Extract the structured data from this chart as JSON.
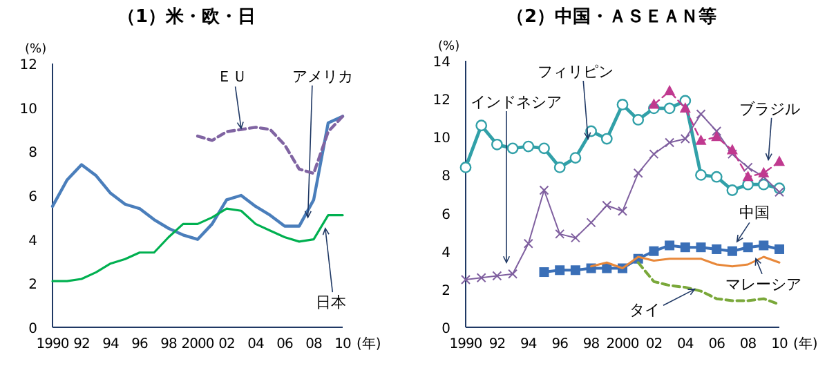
{
  "chart_data": [
    {
      "type": "line",
      "title": "（1）米・欧・日",
      "xlabel": "(年)",
      "ylabel": "(%)",
      "x": [
        1990,
        1991,
        1992,
        1993,
        1994,
        1995,
        1996,
        1997,
        1998,
        1999,
        2000,
        2001,
        2002,
        2003,
        2004,
        2005,
        2006,
        2007,
        2008,
        2009,
        2010
      ],
      "xlim": [
        1990,
        2010
      ],
      "ylim": [
        0,
        12
      ],
      "yticks": [
        0,
        2,
        4,
        6,
        8,
        10,
        12
      ],
      "xticks": [
        {
          "value": 1990,
          "label": "1990"
        },
        {
          "value": 1992,
          "label": "92"
        },
        {
          "value": 1994,
          "label": "94"
        },
        {
          "value": 1996,
          "label": "96"
        },
        {
          "value": 1998,
          "label": "98"
        },
        {
          "value": 2000,
          "label": "2000"
        },
        {
          "value": 2002,
          "label": "02"
        },
        {
          "value": 2004,
          "label": "04"
        },
        {
          "value": 2006,
          "label": "06"
        },
        {
          "value": 2008,
          "label": "08"
        },
        {
          "value": 2010,
          "label": "10"
        }
      ],
      "legend": false,
      "grid": false,
      "series": [
        {
          "name": "アメリカ",
          "color": "#4a7ebb",
          "marker": "none",
          "line_style": "solid",
          "values": [
            5.5,
            6.7,
            7.4,
            6.9,
            6.1,
            5.6,
            5.4,
            4.9,
            4.5,
            4.2,
            4.0,
            4.7,
            5.8,
            6.0,
            5.5,
            5.1,
            4.6,
            4.6,
            5.8,
            9.3,
            9.6
          ]
        },
        {
          "name": "日本",
          "color": "#00b050",
          "marker": "none",
          "line_style": "solid",
          "values": [
            2.1,
            2.1,
            2.2,
            2.5,
            2.9,
            3.1,
            3.4,
            3.4,
            4.1,
            4.7,
            4.7,
            5.0,
            5.4,
            5.3,
            4.7,
            4.4,
            4.1,
            3.9,
            4.0,
            5.1,
            5.1
          ]
        },
        {
          "name": "ＥＵ",
          "color": "#8064a2",
          "marker": "none",
          "line_style": "dashed",
          "values": [
            null,
            null,
            null,
            null,
            null,
            null,
            null,
            null,
            null,
            null,
            8.7,
            8.5,
            8.9,
            9.0,
            9.1,
            9.0,
            8.3,
            7.2,
            7.0,
            8.9,
            9.6
          ]
        }
      ]
    },
    {
      "type": "line",
      "title": "（2）中国・ＡＳＥＡＮ等",
      "xlabel": "(年)",
      "ylabel": "(%)",
      "x": [
        1990,
        1991,
        1992,
        1993,
        1994,
        1995,
        1996,
        1997,
        1998,
        1999,
        2000,
        2001,
        2002,
        2003,
        2004,
        2005,
        2006,
        2007,
        2008,
        2009,
        2010
      ],
      "xlim": [
        1990,
        2010
      ],
      "ylim": [
        0,
        14
      ],
      "yticks": [
        0,
        2,
        4,
        6,
        8,
        10,
        12,
        14
      ],
      "xticks": [
        {
          "value": 1990,
          "label": "1990"
        },
        {
          "value": 1992,
          "label": "92"
        },
        {
          "value": 1994,
          "label": "94"
        },
        {
          "value": 1996,
          "label": "96"
        },
        {
          "value": 1998,
          "label": "98"
        },
        {
          "value": 2000,
          "label": "2000"
        },
        {
          "value": 2002,
          "label": "02"
        },
        {
          "value": 2004,
          "label": "04"
        },
        {
          "value": 2006,
          "label": "06"
        },
        {
          "value": 2008,
          "label": "08"
        },
        {
          "value": 2010,
          "label": "10"
        }
      ],
      "legend": false,
      "grid": false,
      "series": [
        {
          "name": "フィリピン",
          "color": "#31a0a8",
          "marker": "circle",
          "line_style": "solid",
          "values": [
            8.4,
            10.6,
            9.6,
            9.4,
            9.5,
            9.4,
            8.4,
            8.9,
            10.3,
            9.9,
            11.7,
            10.9,
            11.5,
            11.5,
            11.9,
            8.0,
            7.9,
            7.2,
            7.5,
            7.5,
            7.3
          ]
        },
        {
          "name": "インドネシア",
          "color": "#7f5f9f",
          "marker": "cross",
          "line_style": "solid",
          "values": [
            2.5,
            2.6,
            2.7,
            2.8,
            4.4,
            7.2,
            4.9,
            4.7,
            5.5,
            6.4,
            6.1,
            8.1,
            9.1,
            9.7,
            9.9,
            11.2,
            10.3,
            9.1,
            8.4,
            7.9,
            7.1
          ]
        },
        {
          "name": "ブラジル",
          "color": "#c0398f",
          "marker": "triangle",
          "line_style": "dashed",
          "values": [
            null,
            null,
            null,
            null,
            null,
            null,
            null,
            null,
            null,
            null,
            null,
            null,
            11.7,
            12.4,
            11.5,
            9.8,
            10.0,
            9.3,
            7.9,
            8.1,
            8.7
          ]
        },
        {
          "name": "中国",
          "color": "#3a6fb7",
          "marker": "square",
          "line_style": "solid",
          "values": [
            null,
            null,
            null,
            null,
            null,
            2.9,
            3.0,
            3.0,
            3.1,
            3.1,
            3.1,
            3.6,
            4.0,
            4.3,
            4.2,
            4.2,
            4.1,
            4.0,
            4.2,
            4.3,
            4.1
          ]
        },
        {
          "name": "マレーシア",
          "color": "#e8883a",
          "marker": "none",
          "line_style": "solid",
          "values": [
            null,
            null,
            null,
            null,
            null,
            null,
            null,
            null,
            3.2,
            3.4,
            3.1,
            3.7,
            3.5,
            3.6,
            3.6,
            3.6,
            3.3,
            3.2,
            3.3,
            3.7,
            3.4
          ]
        },
        {
          "name": "タイ",
          "color": "#7aa83a",
          "marker": "none",
          "line_style": "dashed",
          "values": [
            null,
            null,
            null,
            null,
            null,
            null,
            null,
            null,
            null,
            null,
            null,
            3.4,
            2.4,
            2.2,
            2.1,
            1.9,
            1.5,
            1.4,
            1.4,
            1.5,
            1.2
          ]
        }
      ]
    }
  ]
}
